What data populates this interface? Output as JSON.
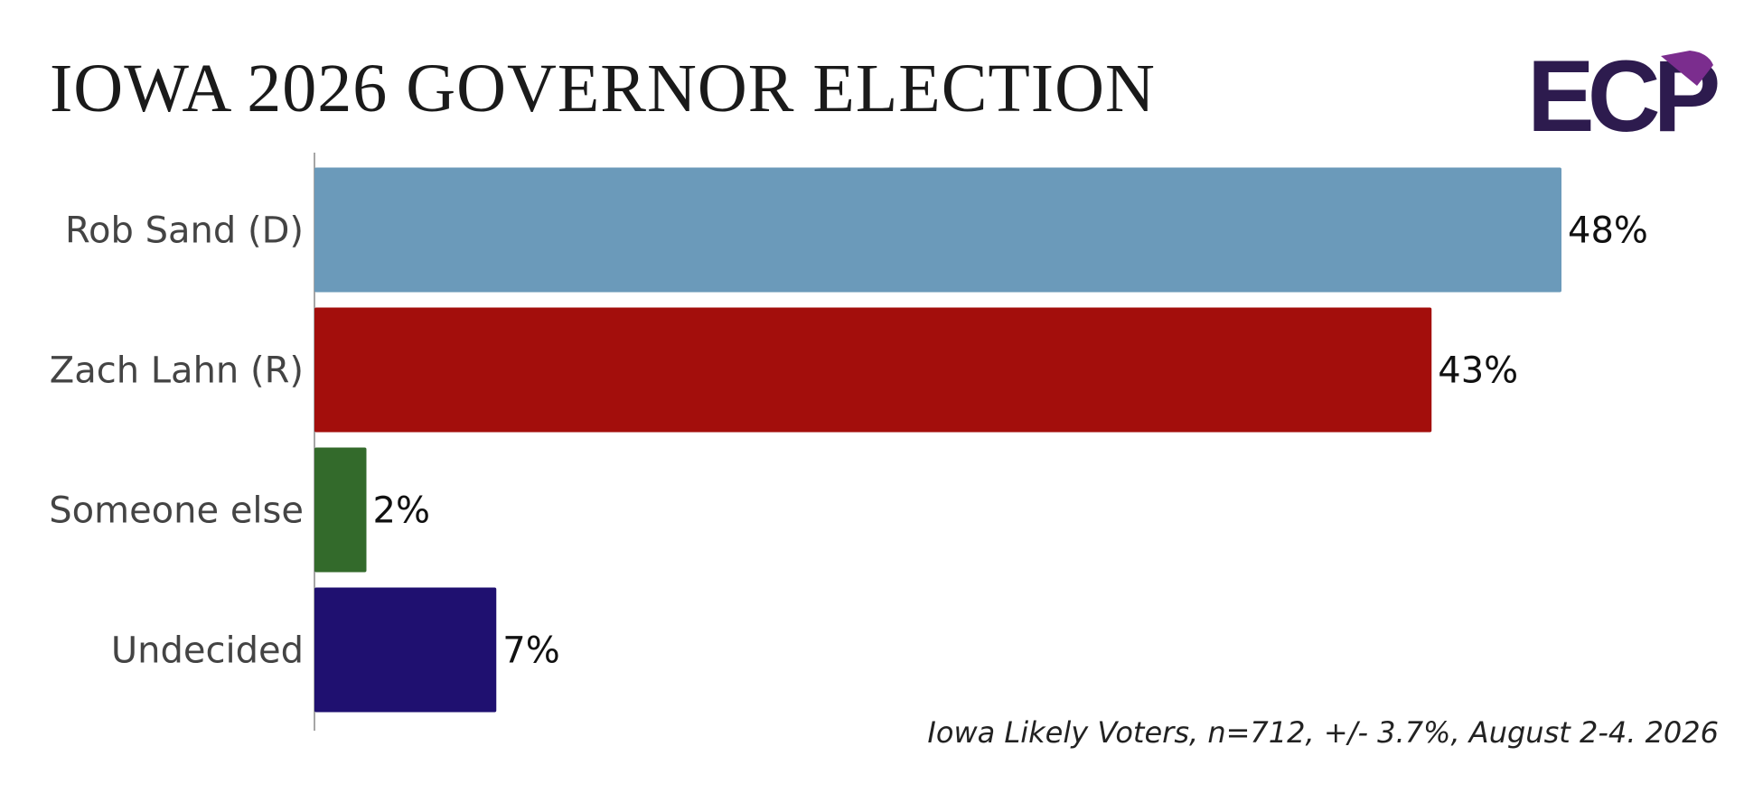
{
  "chart_data": {
    "type": "hbar",
    "title": "IOWA 2026 GOVERNOR ELECTION",
    "logo": "ECP",
    "categories": [
      "Rob Sand (D)",
      "Zach Lahn (R)",
      "Someone else",
      "Undecided"
    ],
    "values": [
      48,
      43,
      2,
      7
    ],
    "value_labels": [
      "48%",
      "43%",
      "2%",
      "7%"
    ],
    "colors": [
      "#6b9aba",
      "#a30e0c",
      "#336a2b",
      "#1f1070"
    ],
    "xlim": [
      0,
      48
    ],
    "note": "Iowa Likely Voters, n=712, +/- 3.7%, August 2-4. 2026"
  }
}
